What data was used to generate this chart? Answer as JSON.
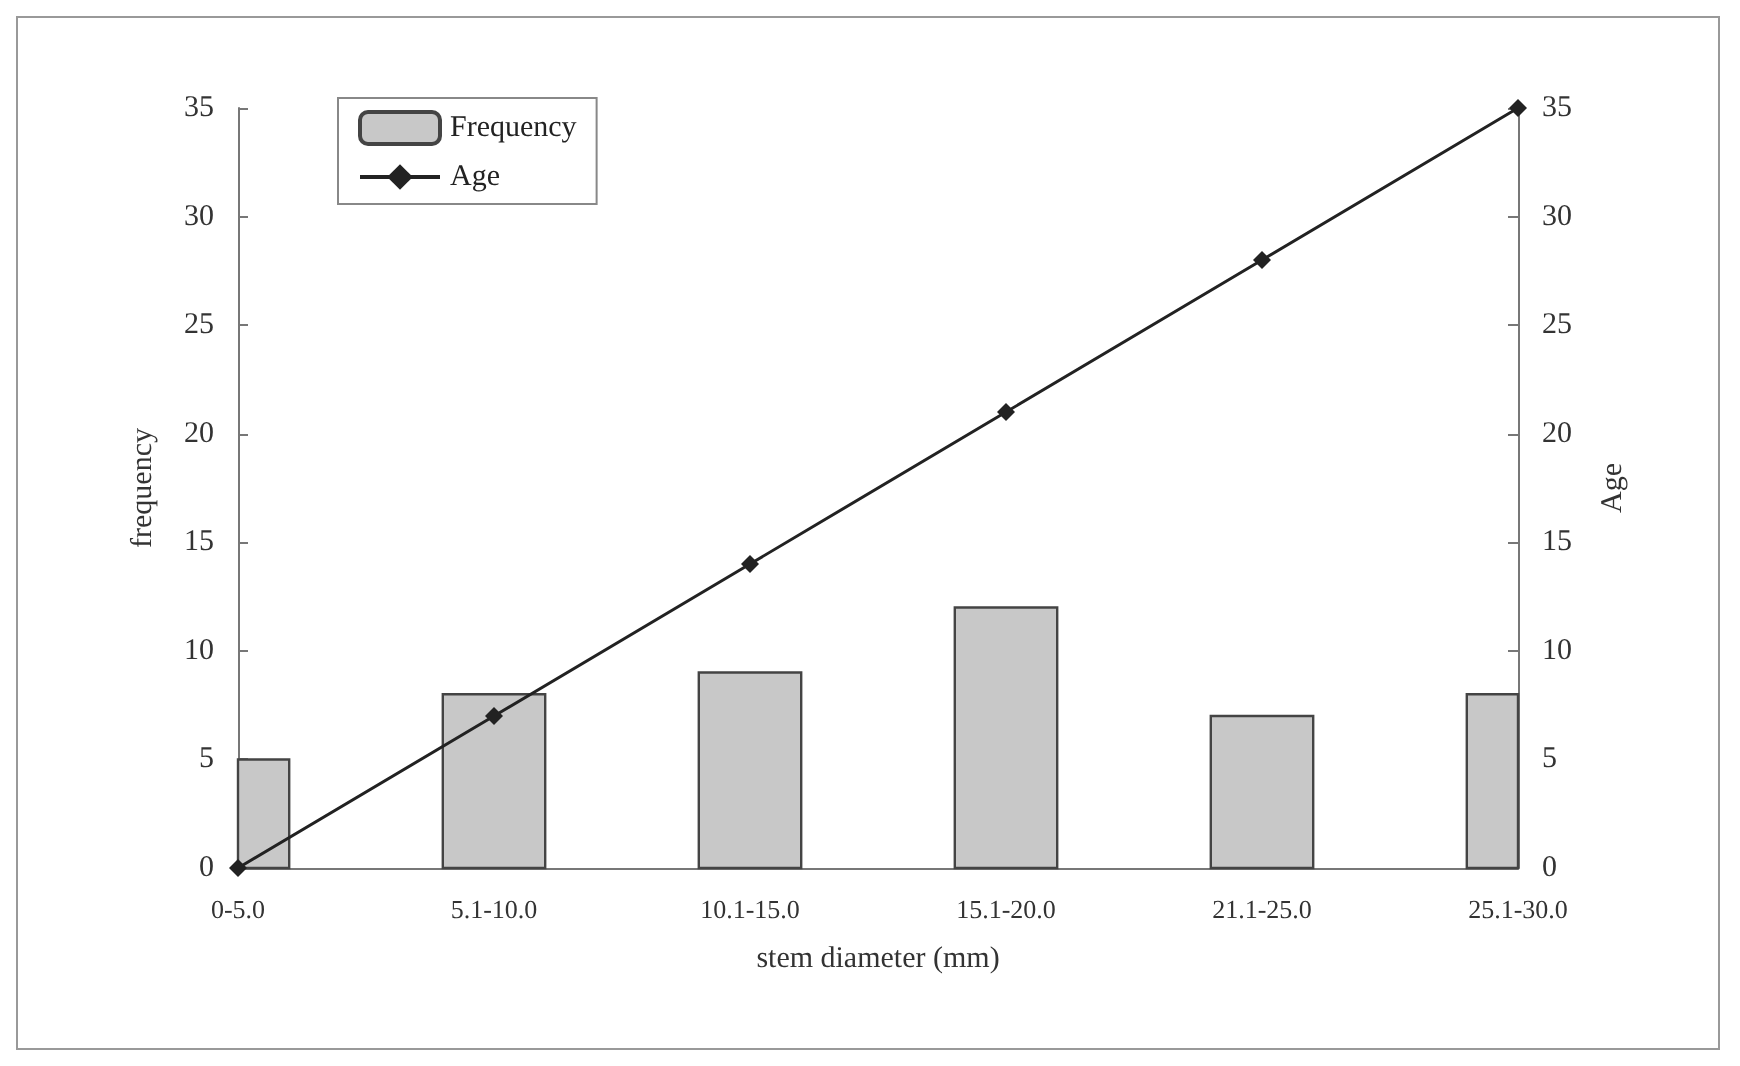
{
  "chart_data": {
    "type": "bar",
    "categories": [
      "0-5.0",
      "5.1-10.0",
      "10.1-15.0",
      "15.1-20.0",
      "21.1-25.0",
      "25.1-30.0"
    ],
    "xlabel": "stem diameter (mm)",
    "ylabel": "frequency",
    "y2label": "Age",
    "series": [
      {
        "name": "Frequency",
        "type": "bar",
        "color": "#c8c8c8",
        "values": [
          5,
          8,
          9,
          12,
          7,
          8
        ]
      },
      {
        "name": "Age",
        "type": "line",
        "axis": "y2",
        "color": "#222222",
        "marker": "diamond",
        "values": [
          0,
          7,
          14,
          21,
          28,
          35
        ]
      }
    ],
    "ylim": [
      0,
      35
    ],
    "yticks": [
      0,
      5,
      10,
      15,
      20,
      25,
      30,
      35
    ],
    "y2lim": [
      0,
      35
    ],
    "y2ticks": [
      0,
      5,
      10,
      15,
      20,
      25,
      30,
      35
    ],
    "grid": false,
    "legend": "top left"
  }
}
